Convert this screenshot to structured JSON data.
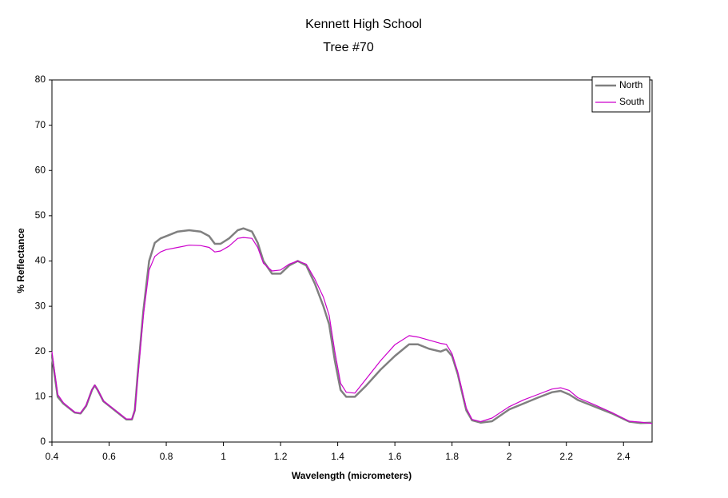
{
  "chart_data": {
    "type": "line",
    "title": "Kennett High School",
    "subtitle": "Tree #70",
    "x_label": "Wavelength (micrometers)",
    "y_label": "% Reflectance",
    "x": [
      0.4,
      0.42,
      0.44,
      0.46,
      0.48,
      0.5,
      0.52,
      0.54,
      0.55,
      0.56,
      0.58,
      0.6,
      0.62,
      0.64,
      0.66,
      0.68,
      0.69,
      0.7,
      0.72,
      0.74,
      0.76,
      0.78,
      0.8,
      0.84,
      0.88,
      0.92,
      0.95,
      0.97,
      0.99,
      1.02,
      1.05,
      1.07,
      1.1,
      1.12,
      1.14,
      1.17,
      1.2,
      1.23,
      1.26,
      1.29,
      1.32,
      1.35,
      1.37,
      1.39,
      1.41,
      1.43,
      1.46,
      1.5,
      1.55,
      1.6,
      1.65,
      1.68,
      1.72,
      1.76,
      1.78,
      1.8,
      1.82,
      1.85,
      1.87,
      1.9,
      1.94,
      2.0,
      2.05,
      2.1,
      2.15,
      2.18,
      2.21,
      2.24,
      2.3,
      2.36,
      2.42,
      2.46,
      2.5
    ],
    "series": [
      {
        "name": "North",
        "color": "#808080",
        "values": [
          19,
          10,
          8.5,
          7.5,
          6.5,
          6.3,
          8,
          11.5,
          12.5,
          11.5,
          9,
          8,
          7,
          6,
          5,
          5,
          7,
          15,
          29,
          40,
          44,
          45,
          45.5,
          46.5,
          46.8,
          46.5,
          45.5,
          43.8,
          43.8,
          45,
          46.8,
          47.2,
          46.5,
          44,
          40,
          37.2,
          37.2,
          39,
          40,
          39,
          35,
          30,
          26,
          18,
          11.5,
          10,
          10,
          12.5,
          16,
          19,
          21.6,
          21.6,
          20.6,
          20,
          20.5,
          19,
          15,
          7,
          4.8,
          4.3,
          4.6,
          7.2,
          8.5,
          9.8,
          11,
          11.3,
          10.5,
          9.3,
          7.8,
          6.3,
          4.5,
          4.2,
          4.3
        ]
      },
      {
        "name": "South",
        "color": "#cc00cc",
        "values": [
          20,
          10.5,
          8.7,
          7.6,
          6.6,
          6.4,
          8.2,
          11.6,
          12.6,
          11.6,
          9.1,
          8.1,
          7.1,
          6.1,
          5.1,
          5.1,
          7,
          14,
          28,
          38,
          41,
          42,
          42.5,
          43,
          43.5,
          43.4,
          43,
          42,
          42.2,
          43.3,
          45,
          45.2,
          45,
          43,
          39.5,
          37.8,
          38,
          39.3,
          40,
          39.3,
          36,
          32,
          28,
          20,
          13,
          11,
          10.8,
          14,
          18,
          21.5,
          23.5,
          23.2,
          22.5,
          21.8,
          21.6,
          19.5,
          15.5,
          7.5,
          5,
          4.5,
          5.3,
          7.8,
          9.3,
          10.5,
          11.7,
          12,
          11.4,
          9.8,
          8.2,
          6.5,
          4.6,
          4.4,
          4.1
        ]
      }
    ],
    "xlim": [
      0.4,
      2.5
    ],
    "xticks": [
      0.4,
      0.6,
      0.8,
      1,
      1.2,
      1.4,
      1.6,
      1.8,
      2,
      2.2,
      2.4
    ],
    "ylim": [
      0,
      80
    ],
    "yticks": [
      0,
      10,
      20,
      30,
      40,
      50,
      60,
      70,
      80
    ],
    "grid": false,
    "legend": "top-right"
  }
}
